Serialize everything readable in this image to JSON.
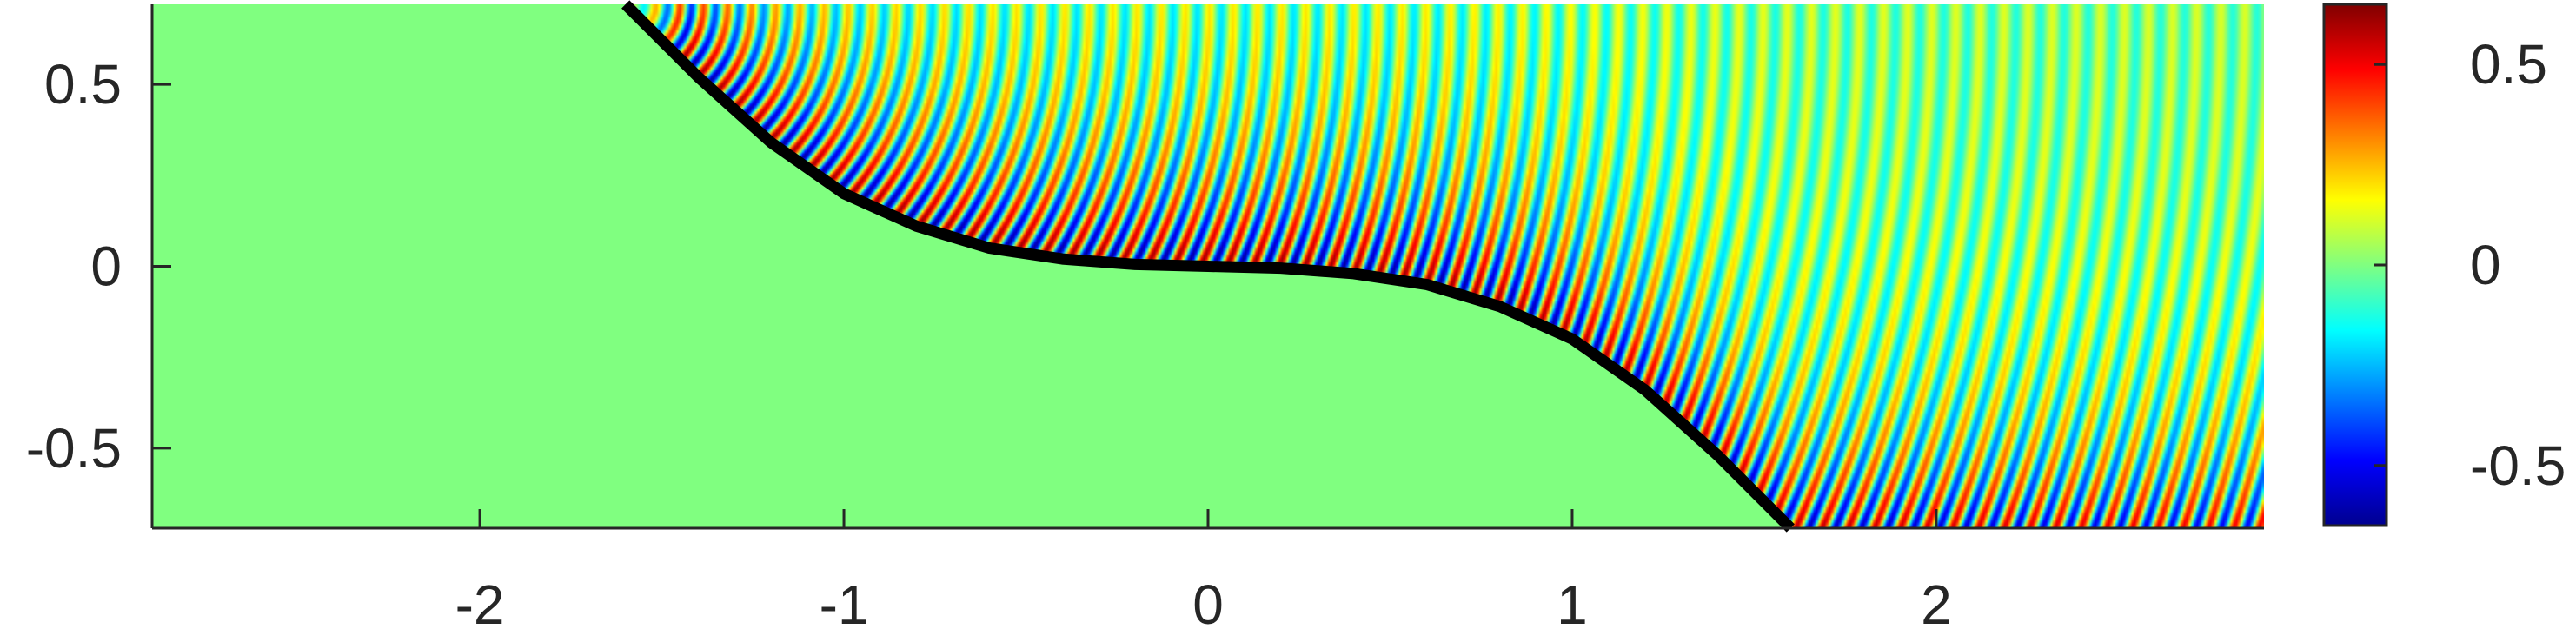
{
  "chart_data": {
    "type": "heatmap",
    "title": "",
    "xlabel": "",
    "ylabel": "",
    "xlim": [
      -2.9,
      2.9
    ],
    "ylim": [
      -0.72,
      0.72
    ],
    "x_ticks": [
      {
        "value": -2,
        "label": "-2"
      },
      {
        "value": -1,
        "label": "-1"
      },
      {
        "value": 0,
        "label": "0"
      },
      {
        "value": 1,
        "label": "1"
      },
      {
        "value": 2,
        "label": "2"
      }
    ],
    "y_ticks": [
      {
        "value": 0.5,
        "label": "0.5"
      },
      {
        "value": 0,
        "label": "0"
      },
      {
        "value": -0.5,
        "label": "-0.5"
      }
    ],
    "colormap": "jet",
    "color_range": [
      -0.65,
      0.65
    ],
    "colorbar_ticks": [
      {
        "value": 0.5,
        "label": "0.5"
      },
      {
        "value": 0,
        "label": "0"
      },
      {
        "value": -0.5,
        "label": "-0.5"
      }
    ],
    "boundary_curve": {
      "color": "#000000",
      "points": [
        [
          -1.6,
          0.72
        ],
        [
          -1.4,
          0.52
        ],
        [
          -1.2,
          0.34
        ],
        [
          -1.0,
          0.2
        ],
        [
          -0.8,
          0.11
        ],
        [
          -0.6,
          0.05
        ],
        [
          -0.4,
          0.02
        ],
        [
          -0.2,
          0.005
        ],
        [
          0.0,
          0.0
        ],
        [
          0.2,
          -0.005
        ],
        [
          0.4,
          -0.02
        ],
        [
          0.6,
          -0.05
        ],
        [
          0.8,
          -0.11
        ],
        [
          1.0,
          -0.2
        ],
        [
          1.2,
          -0.34
        ],
        [
          1.4,
          -0.52
        ],
        [
          1.6,
          -0.72
        ]
      ]
    },
    "field": {
      "background_value": 0,
      "wave_source": [
        -1.6,
        0.72
      ],
      "max_amplitude": 0.65,
      "wavenumber": 95
    },
    "grid": false
  }
}
